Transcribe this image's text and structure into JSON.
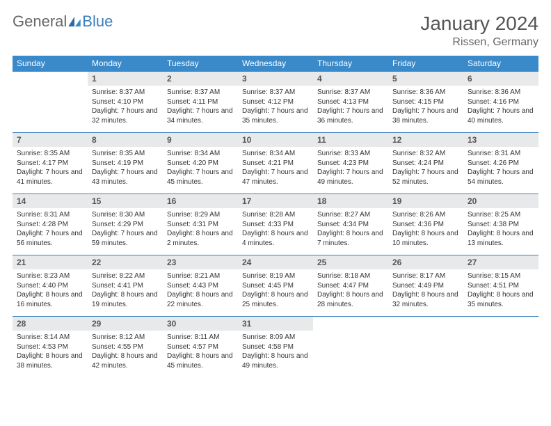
{
  "logo": {
    "part1": "General",
    "part2": "Blue"
  },
  "title": "January 2024",
  "location": "Rissen, Germany",
  "colors": {
    "header_bg": "#3a89c9",
    "header_fg": "#ffffff",
    "daynum_bg": "#e8e9ea",
    "rule": "#3a7fbf",
    "text": "#333333"
  },
  "weekdays": [
    "Sunday",
    "Monday",
    "Tuesday",
    "Wednesday",
    "Thursday",
    "Friday",
    "Saturday"
  ],
  "weeks": [
    [
      {
        "n": "",
        "t": ""
      },
      {
        "n": "1",
        "t": "Sunrise: 8:37 AM\nSunset: 4:10 PM\nDaylight: 7 hours and 32 minutes."
      },
      {
        "n": "2",
        "t": "Sunrise: 8:37 AM\nSunset: 4:11 PM\nDaylight: 7 hours and 34 minutes."
      },
      {
        "n": "3",
        "t": "Sunrise: 8:37 AM\nSunset: 4:12 PM\nDaylight: 7 hours and 35 minutes."
      },
      {
        "n": "4",
        "t": "Sunrise: 8:37 AM\nSunset: 4:13 PM\nDaylight: 7 hours and 36 minutes."
      },
      {
        "n": "5",
        "t": "Sunrise: 8:36 AM\nSunset: 4:15 PM\nDaylight: 7 hours and 38 minutes."
      },
      {
        "n": "6",
        "t": "Sunrise: 8:36 AM\nSunset: 4:16 PM\nDaylight: 7 hours and 40 minutes."
      }
    ],
    [
      {
        "n": "7",
        "t": "Sunrise: 8:35 AM\nSunset: 4:17 PM\nDaylight: 7 hours and 41 minutes."
      },
      {
        "n": "8",
        "t": "Sunrise: 8:35 AM\nSunset: 4:19 PM\nDaylight: 7 hours and 43 minutes."
      },
      {
        "n": "9",
        "t": "Sunrise: 8:34 AM\nSunset: 4:20 PM\nDaylight: 7 hours and 45 minutes."
      },
      {
        "n": "10",
        "t": "Sunrise: 8:34 AM\nSunset: 4:21 PM\nDaylight: 7 hours and 47 minutes."
      },
      {
        "n": "11",
        "t": "Sunrise: 8:33 AM\nSunset: 4:23 PM\nDaylight: 7 hours and 49 minutes."
      },
      {
        "n": "12",
        "t": "Sunrise: 8:32 AM\nSunset: 4:24 PM\nDaylight: 7 hours and 52 minutes."
      },
      {
        "n": "13",
        "t": "Sunrise: 8:31 AM\nSunset: 4:26 PM\nDaylight: 7 hours and 54 minutes."
      }
    ],
    [
      {
        "n": "14",
        "t": "Sunrise: 8:31 AM\nSunset: 4:28 PM\nDaylight: 7 hours and 56 minutes."
      },
      {
        "n": "15",
        "t": "Sunrise: 8:30 AM\nSunset: 4:29 PM\nDaylight: 7 hours and 59 minutes."
      },
      {
        "n": "16",
        "t": "Sunrise: 8:29 AM\nSunset: 4:31 PM\nDaylight: 8 hours and 2 minutes."
      },
      {
        "n": "17",
        "t": "Sunrise: 8:28 AM\nSunset: 4:33 PM\nDaylight: 8 hours and 4 minutes."
      },
      {
        "n": "18",
        "t": "Sunrise: 8:27 AM\nSunset: 4:34 PM\nDaylight: 8 hours and 7 minutes."
      },
      {
        "n": "19",
        "t": "Sunrise: 8:26 AM\nSunset: 4:36 PM\nDaylight: 8 hours and 10 minutes."
      },
      {
        "n": "20",
        "t": "Sunrise: 8:25 AM\nSunset: 4:38 PM\nDaylight: 8 hours and 13 minutes."
      }
    ],
    [
      {
        "n": "21",
        "t": "Sunrise: 8:23 AM\nSunset: 4:40 PM\nDaylight: 8 hours and 16 minutes."
      },
      {
        "n": "22",
        "t": "Sunrise: 8:22 AM\nSunset: 4:41 PM\nDaylight: 8 hours and 19 minutes."
      },
      {
        "n": "23",
        "t": "Sunrise: 8:21 AM\nSunset: 4:43 PM\nDaylight: 8 hours and 22 minutes."
      },
      {
        "n": "24",
        "t": "Sunrise: 8:19 AM\nSunset: 4:45 PM\nDaylight: 8 hours and 25 minutes."
      },
      {
        "n": "25",
        "t": "Sunrise: 8:18 AM\nSunset: 4:47 PM\nDaylight: 8 hours and 28 minutes."
      },
      {
        "n": "26",
        "t": "Sunrise: 8:17 AM\nSunset: 4:49 PM\nDaylight: 8 hours and 32 minutes."
      },
      {
        "n": "27",
        "t": "Sunrise: 8:15 AM\nSunset: 4:51 PM\nDaylight: 8 hours and 35 minutes."
      }
    ],
    [
      {
        "n": "28",
        "t": "Sunrise: 8:14 AM\nSunset: 4:53 PM\nDaylight: 8 hours and 38 minutes."
      },
      {
        "n": "29",
        "t": "Sunrise: 8:12 AM\nSunset: 4:55 PM\nDaylight: 8 hours and 42 minutes."
      },
      {
        "n": "30",
        "t": "Sunrise: 8:11 AM\nSunset: 4:57 PM\nDaylight: 8 hours and 45 minutes."
      },
      {
        "n": "31",
        "t": "Sunrise: 8:09 AM\nSunset: 4:58 PM\nDaylight: 8 hours and 49 minutes."
      },
      {
        "n": "",
        "t": ""
      },
      {
        "n": "",
        "t": ""
      },
      {
        "n": "",
        "t": ""
      }
    ]
  ]
}
